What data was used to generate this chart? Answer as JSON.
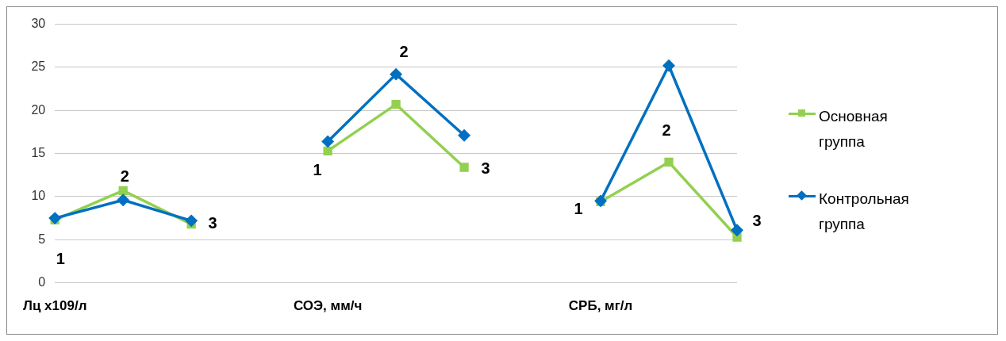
{
  "chart_data": {
    "type": "line",
    "categories": [
      "Лц х109/л",
      null,
      null,
      null,
      "СОЭ, мм/ч",
      null,
      null,
      null,
      "СРБ, мг/л",
      null,
      null
    ],
    "series": [
      {
        "name": "Основная группа",
        "color": "#92d050",
        "marker": "square",
        "values": [
          7.3,
          10.7,
          6.8,
          null,
          15.3,
          20.7,
          13.4,
          null,
          9.4,
          14.0,
          5.3
        ]
      },
      {
        "name": "Контрольная группа",
        "color": "#0070c0",
        "marker": "diamond",
        "values": [
          7.5,
          9.6,
          7.2,
          null,
          16.4,
          24.2,
          17.1,
          null,
          9.5,
          25.2,
          6.1
        ]
      }
    ],
    "ylim": [
      0,
      30
    ],
    "yticks": [
      0,
      5,
      10,
      15,
      20,
      25,
      30
    ],
    "grid": "y",
    "legend": "right",
    "annotations": [
      "1",
      "2",
      "3",
      "1",
      "2",
      "3",
      "1",
      "2",
      "3"
    ]
  }
}
